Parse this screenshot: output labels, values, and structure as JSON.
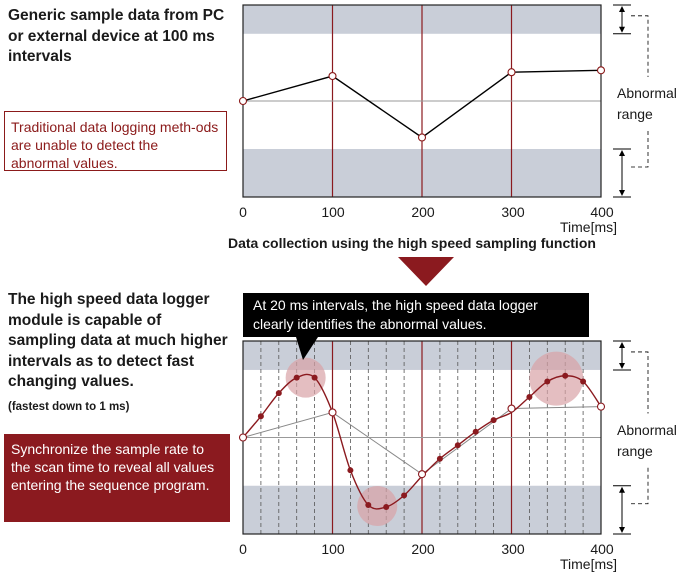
{
  "top": {
    "heading": "Generic sample data from PC or external device at 100 ms intervals",
    "note": "Traditional data logging meth-ods are unable to detect the abnormal values."
  },
  "middle": {
    "label": "Data collection using the high speed sampling function"
  },
  "bottom": {
    "heading": "The high speed data logger module is capable of sampling data at much higher intervals as to detect fast changing values.",
    "heading_small": "(fastest down to 1 ms)",
    "note": "Synchronize the sample rate to the scan time to reveal all values entering the sequence program.",
    "callout": "At 20 ms intervals, the high speed data logger clearly identifies the abnormal values."
  },
  "axis": {
    "ticks": [
      "0",
      "100",
      "200",
      "300",
      "400"
    ],
    "unit_label": "Time[ms]"
  },
  "abnormal_label": "Abnormal range",
  "colors": {
    "accent": "#8b1a1f",
    "band": "#c9ced8",
    "highlight": "#d9a3a6"
  },
  "chart_data": [
    {
      "type": "line",
      "series": [
        {
          "x": [
            0,
            100,
            200,
            300,
            400
          ],
          "y": [
            0.5,
            0.63,
            0.31,
            0.65,
            0.66
          ]
        }
      ],
      "xlim": [
        0,
        400
      ],
      "ylim": [
        0,
        1
      ],
      "abnormal_bands": [
        [
          0,
          0.25
        ],
        [
          0.85,
          1
        ]
      ]
    },
    {
      "type": "line",
      "series": [
        {
          "x": [
            0,
            100,
            200,
            300,
            400
          ],
          "y": [
            0.5,
            0.63,
            0.31,
            0.65,
            0.66
          ]
        },
        {
          "x": [
            0,
            20,
            40,
            60,
            80,
            100,
            120,
            140,
            160,
            180,
            200,
            220,
            240,
            260,
            280,
            300,
            320,
            340,
            360,
            380,
            400
          ],
          "y": [
            0.5,
            0.61,
            0.73,
            0.81,
            0.81,
            0.63,
            0.33,
            0.15,
            0.14,
            0.2,
            0.3,
            0.39,
            0.46,
            0.53,
            0.59,
            0.63,
            0.71,
            0.79,
            0.82,
            0.79,
            0.66
          ]
        }
      ],
      "xlim": [
        0,
        400
      ],
      "ylim": [
        0,
        1
      ],
      "abnormal_bands": [
        [
          0,
          0.25
        ],
        [
          0.85,
          1
        ]
      ]
    }
  ]
}
